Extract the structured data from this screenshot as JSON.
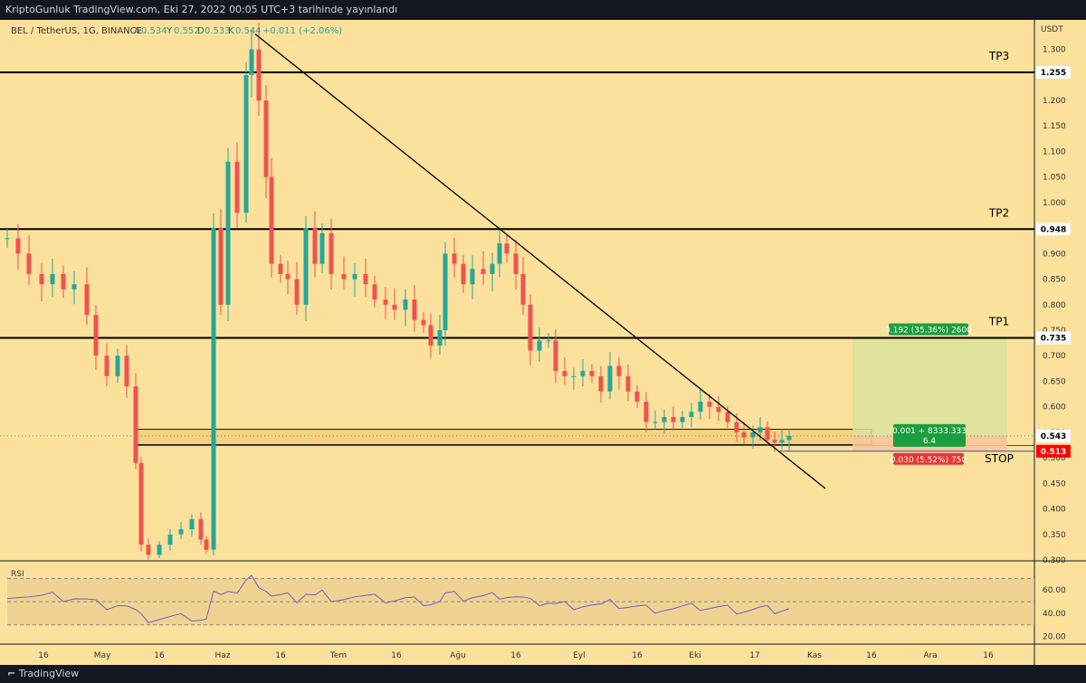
{
  "header": {
    "text": "KriptoGunluk TradingView.com, Eki 27, 2022 00:05 UTC+3 tarihinde yayınlandı"
  },
  "footer": {
    "brand": "TradingView"
  },
  "colors": {
    "bg": "#fbe19c",
    "up": "#26a69a",
    "down": "#ef5350",
    "rsi": "#7e57c2",
    "rsi_ma": "#f2d96b",
    "frame": "#131722"
  },
  "chart_data": {
    "type": "candlestick",
    "symbol_line": {
      "symbol": "BEL / TetherUS, 1G, BINANCE",
      "o_label": "A",
      "o_value": "0.534",
      "h_label": "Y",
      "h_value": "0.552",
      "l_label": "D",
      "l_value": "0.533",
      "c_label": "K",
      "c_value": "0.544",
      "change": "+0.011 (+2.06%)"
    },
    "currency": "USDT",
    "y_ticks": [
      "1.300",
      "1.250",
      "1.200",
      "1.150",
      "1.100",
      "1.050",
      "1.000",
      "0.950",
      "0.900",
      "0.850",
      "0.800",
      "0.750",
      "0.700",
      "0.650",
      "0.600",
      "0.550",
      "0.500",
      "0.450",
      "0.400",
      "0.350",
      "0.300"
    ],
    "ylim": [
      0.3,
      1.34
    ],
    "x_ticks": [
      "16",
      "May",
      "16",
      "Haz",
      "16",
      "Tem",
      "16",
      "Ağu",
      "16",
      "Eyl",
      "16",
      "Eki",
      "17",
      "Kas",
      "16",
      "Ara",
      "16"
    ],
    "horizontal_levels": [
      {
        "name": "TP3",
        "value": 1.255,
        "label": "1.255"
      },
      {
        "name": "TP2",
        "value": 0.948,
        "label": "0.948"
      },
      {
        "name": "TP1",
        "value": 0.735,
        "label": "0.735"
      }
    ],
    "current_price": {
      "value": 0.543,
      "label": "0.543"
    },
    "stop": {
      "name": "STOP",
      "value": 0.513,
      "label": "0.513"
    },
    "position": {
      "entry": 0.543,
      "target": 0.735,
      "stop": 0.513,
      "target_label": "0.192 (35.36%) 2600",
      "mid_label_line1": "0.001 ÷ 8333.333",
      "mid_label_line2": "6.4",
      "stop_label": "0.030 (5.52%) 750"
    },
    "zone": {
      "top": 0.556,
      "bottom": 0.526
    },
    "trendline": {
      "from_date": "2022-06-10",
      "from": 1.33,
      "to_date": "2022-10-30",
      "to": 0.44
    },
    "rsi": {
      "label": "RSI",
      "y_ticks": [
        "60.00",
        "40.00",
        "20.00"
      ],
      "upper": 70,
      "mid": 50,
      "lower": 30,
      "ylim": [
        15,
        82
      ]
    }
  }
}
